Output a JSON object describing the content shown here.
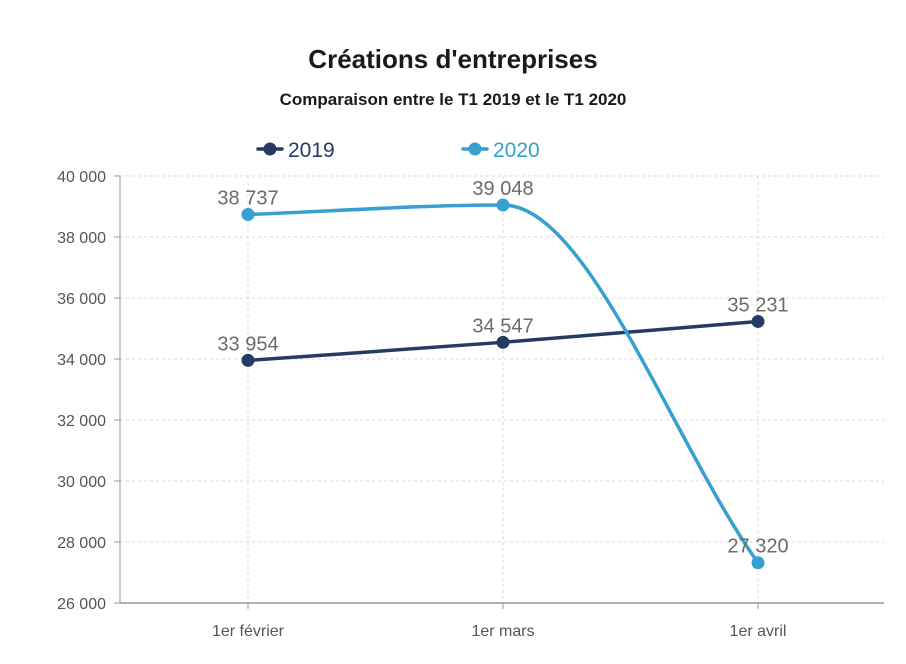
{
  "chart_data": {
    "type": "line",
    "title": "Créations d'entreprises",
    "subtitle": "Comparaison entre le T1 2019 et le T1 2020",
    "categories": [
      "1er février",
      "1er mars",
      "1er avril"
    ],
    "series": [
      {
        "name": "2019",
        "color": "#253b66",
        "values": [
          33954,
          34547,
          35231
        ],
        "labels": [
          "33 954",
          "34 547",
          "35 231"
        ]
      },
      {
        "name": "2020",
        "color": "#37a0d0",
        "values": [
          38737,
          39048,
          27320
        ],
        "labels": [
          "38 737",
          "39 048",
          "27 320"
        ]
      }
    ],
    "ylim": [
      26000,
      40000
    ],
    "yticks": [
      40000,
      38000,
      36000,
      34000,
      32000,
      30000,
      28000,
      26000
    ],
    "ytick_labels": [
      "40 000",
      "38 000",
      "36 000",
      "34 000",
      "32 000",
      "30 000",
      "28 000",
      "26 000"
    ],
    "grid": true,
    "legend_position": "top-left"
  }
}
